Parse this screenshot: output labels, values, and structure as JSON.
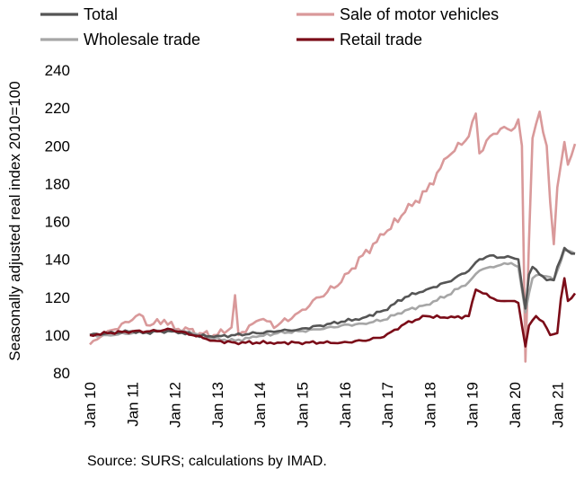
{
  "chart_data": {
    "type": "line",
    "ylabel": "Seasonally adjusted real index 2010=100",
    "xlabel": "",
    "ylim": [
      80,
      240
    ],
    "yticks": [
      80,
      100,
      120,
      140,
      160,
      180,
      200,
      220,
      240
    ],
    "xlim": [
      "2010-01",
      "2021-06"
    ],
    "xtick_labels": [
      "Jan 10",
      "Jan 11",
      "Jan 12",
      "Jan 13",
      "Jan 14",
      "Jan 15",
      "Jan 16",
      "Jan 17",
      "Jan 18",
      "Jan 19",
      "Jan 20",
      "Jan 21"
    ],
    "legend": {
      "placement": "top",
      "columns": 2
    },
    "grid": false,
    "series": [
      {
        "name": "Total",
        "color": "#555555",
        "key_points": [
          [
            "2010-01",
            100
          ],
          [
            "2010-06",
            101
          ],
          [
            "2011-01",
            102
          ],
          [
            "2011-04",
            101
          ],
          [
            "2011-09",
            102
          ],
          [
            "2012-01",
            102
          ],
          [
            "2012-06",
            100
          ],
          [
            "2012-12",
            99
          ],
          [
            "2013-06",
            100
          ],
          [
            "2013-12",
            101
          ],
          [
            "2014-06",
            102
          ],
          [
            "2014-12",
            103
          ],
          [
            "2015-06",
            105
          ],
          [
            "2015-12",
            107
          ],
          [
            "2016-06",
            109
          ],
          [
            "2016-12",
            113
          ],
          [
            "2017-06",
            120
          ],
          [
            "2017-12",
            124
          ],
          [
            "2018-06",
            128
          ],
          [
            "2018-12",
            134
          ],
          [
            "2019-03",
            140
          ],
          [
            "2019-06",
            142
          ],
          [
            "2019-09",
            141
          ],
          [
            "2019-12",
            141
          ],
          [
            "2020-02",
            140
          ],
          [
            "2020-03",
            126
          ],
          [
            "2020-04",
            114
          ],
          [
            "2020-05",
            132
          ],
          [
            "2020-06",
            136
          ],
          [
            "2020-08",
            132
          ],
          [
            "2020-10",
            129
          ],
          [
            "2020-12",
            129
          ],
          [
            "2021-01",
            136
          ],
          [
            "2021-03",
            146
          ],
          [
            "2021-05",
            143
          ],
          [
            "2021-06",
            143
          ]
        ]
      },
      {
        "name": "Sale of motor vehicles",
        "color": "#d9999a",
        "key_points": [
          [
            "2010-01",
            95
          ],
          [
            "2010-04",
            99
          ],
          [
            "2010-08",
            103
          ],
          [
            "2011-01",
            108
          ],
          [
            "2011-03",
            111
          ],
          [
            "2011-06",
            105
          ],
          [
            "2011-10",
            108
          ],
          [
            "2012-01",
            103
          ],
          [
            "2012-04",
            104
          ],
          [
            "2012-08",
            101
          ],
          [
            "2012-12",
            100
          ],
          [
            "2013-03",
            101
          ],
          [
            "2013-05",
            104
          ],
          [
            "2013-06",
            121
          ],
          [
            "2013-07",
            100
          ],
          [
            "2013-10",
            105
          ],
          [
            "2014-01",
            108
          ],
          [
            "2014-06",
            105
          ],
          [
            "2014-12",
            112
          ],
          [
            "2015-06",
            120
          ],
          [
            "2015-12",
            128
          ],
          [
            "2016-06",
            142
          ],
          [
            "2016-12",
            153
          ],
          [
            "2017-06",
            165
          ],
          [
            "2017-12",
            176
          ],
          [
            "2018-06",
            194
          ],
          [
            "2018-12",
            205
          ],
          [
            "2019-02",
            217
          ],
          [
            "2019-03",
            196
          ],
          [
            "2019-06",
            205
          ],
          [
            "2019-09",
            209
          ],
          [
            "2019-12",
            208
          ],
          [
            "2020-02",
            214
          ],
          [
            "2020-03",
            200
          ],
          [
            "2020-04",
            86
          ],
          [
            "2020-05",
            150
          ],
          [
            "2020-06",
            204
          ],
          [
            "2020-08",
            218
          ],
          [
            "2020-10",
            200
          ],
          [
            "2020-11",
            170
          ],
          [
            "2020-12",
            148
          ],
          [
            "2021-01",
            178
          ],
          [
            "2021-03",
            202
          ],
          [
            "2021-04",
            190
          ],
          [
            "2021-06",
            201
          ]
        ]
      },
      {
        "name": "Wholesale trade",
        "color": "#a6a6a6",
        "key_points": [
          [
            "2010-01",
            100
          ],
          [
            "2010-06",
            100
          ],
          [
            "2011-01",
            101
          ],
          [
            "2011-06",
            102
          ],
          [
            "2011-12",
            103
          ],
          [
            "2012-06",
            101
          ],
          [
            "2012-12",
            98
          ],
          [
            "2013-06",
            97
          ],
          [
            "2013-12",
            99
          ],
          [
            "2014-06",
            101
          ],
          [
            "2014-12",
            102
          ],
          [
            "2015-06",
            103
          ],
          [
            "2015-12",
            105
          ],
          [
            "2016-06",
            106
          ],
          [
            "2016-12",
            108
          ],
          [
            "2017-06",
            113
          ],
          [
            "2017-12",
            116
          ],
          [
            "2018-06",
            121
          ],
          [
            "2018-12",
            128
          ],
          [
            "2019-03",
            134
          ],
          [
            "2019-06",
            136
          ],
          [
            "2019-09",
            137
          ],
          [
            "2019-12",
            138
          ],
          [
            "2020-02",
            136
          ],
          [
            "2020-03",
            124
          ],
          [
            "2020-04",
            112
          ],
          [
            "2020-05",
            122
          ],
          [
            "2020-06",
            130
          ],
          [
            "2020-08",
            132
          ],
          [
            "2020-10",
            131
          ],
          [
            "2020-12",
            129
          ],
          [
            "2021-01",
            134
          ],
          [
            "2021-03",
            145
          ],
          [
            "2021-05",
            144
          ],
          [
            "2021-06",
            143
          ]
        ]
      },
      {
        "name": "Retail trade",
        "color": "#7b0c18",
        "key_points": [
          [
            "2010-01",
            100
          ],
          [
            "2010-06",
            101
          ],
          [
            "2011-01",
            102
          ],
          [
            "2011-06",
            102
          ],
          [
            "2011-12",
            103
          ],
          [
            "2012-06",
            100
          ],
          [
            "2012-12",
            97
          ],
          [
            "2013-06",
            96
          ],
          [
            "2013-12",
            96
          ],
          [
            "2014-06",
            96
          ],
          [
            "2014-12",
            96
          ],
          [
            "2015-06",
            96
          ],
          [
            "2015-12",
            96
          ],
          [
            "2016-06",
            97
          ],
          [
            "2016-12",
            99
          ],
          [
            "2017-06",
            106
          ],
          [
            "2017-12",
            110
          ],
          [
            "2018-06",
            109
          ],
          [
            "2018-12",
            110
          ],
          [
            "2019-02",
            124
          ],
          [
            "2019-04",
            122
          ],
          [
            "2019-06",
            120
          ],
          [
            "2019-09",
            118
          ],
          [
            "2019-12",
            118
          ],
          [
            "2020-02",
            117
          ],
          [
            "2020-03",
            105
          ],
          [
            "2020-04",
            94
          ],
          [
            "2020-05",
            105
          ],
          [
            "2020-07",
            110
          ],
          [
            "2020-09",
            107
          ],
          [
            "2020-11",
            100
          ],
          [
            "2021-01",
            101
          ],
          [
            "2021-02",
            119
          ],
          [
            "2021-03",
            130
          ],
          [
            "2021-04",
            118
          ],
          [
            "2021-06",
            122
          ]
        ]
      }
    ]
  },
  "source": "Source: SURS; calculations by IMAD."
}
